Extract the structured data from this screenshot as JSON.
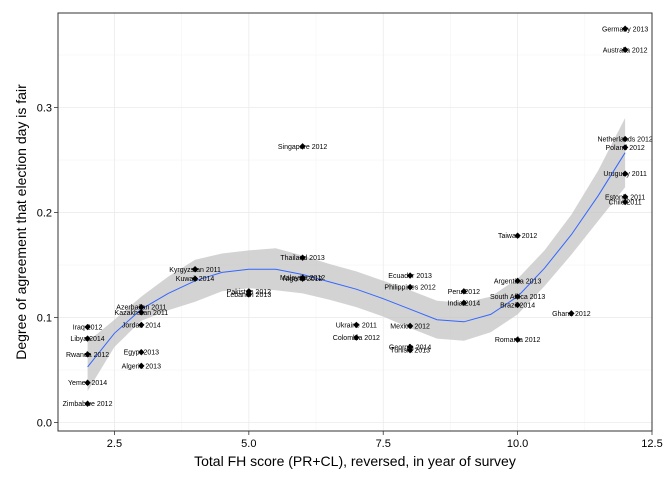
{
  "chart_data": {
    "type": "scatter",
    "xlabel": "Total FH score (PR+CL), reversed, in year of survey",
    "ylabel": "Degree of agreement that election day is fair",
    "xlim": [
      1.45,
      12.5
    ],
    "ylim": [
      -0.008,
      0.39
    ],
    "xticks": [
      2.5,
      5.0,
      7.5,
      10.0,
      12.5
    ],
    "xtick_labels": [
      "2.5",
      "5.0",
      "7.5",
      "10.0",
      "12.5"
    ],
    "yticks": [
      0.0,
      0.1,
      0.2,
      0.3
    ],
    "ytick_labels": [
      "0.0",
      "0.1",
      "0.2",
      "0.3"
    ],
    "grid": true,
    "colors": {
      "points": "#000000",
      "smooth_line": "#3366ff",
      "ribbon": "#c0c0c0",
      "grid": "#ebebeb",
      "panel_border": "#333333"
    },
    "points": [
      {
        "x": 12,
        "y": 0.375,
        "label": "Germany 2013"
      },
      {
        "x": 12,
        "y": 0.355,
        "label": "Australia 2012"
      },
      {
        "x": 12,
        "y": 0.27,
        "label": "Netherlands 2012"
      },
      {
        "x": 12,
        "y": 0.262,
        "label": "Poland 2012"
      },
      {
        "x": 12,
        "y": 0.237,
        "label": "Uruguay 2011"
      },
      {
        "x": 12,
        "y": 0.215,
        "label": "Estonia 2011"
      },
      {
        "x": 12,
        "y": 0.21,
        "label": "Chile 2011"
      },
      {
        "x": 11,
        "y": 0.104,
        "label": "Ghana 2012"
      },
      {
        "x": 10,
        "y": 0.178,
        "label": "Taiwan 2012"
      },
      {
        "x": 10,
        "y": 0.135,
        "label": "Argentina 2013"
      },
      {
        "x": 10,
        "y": 0.12,
        "label": "South Africa 2013"
      },
      {
        "x": 10,
        "y": 0.112,
        "label": "Brazil 2014"
      },
      {
        "x": 10,
        "y": 0.079,
        "label": "Romania 2012"
      },
      {
        "x": 9,
        "y": 0.125,
        "label": "Peru 2012"
      },
      {
        "x": 9,
        "y": 0.114,
        "label": "India 2014"
      },
      {
        "x": 8,
        "y": 0.14,
        "label": "Ecuador 2013"
      },
      {
        "x": 8,
        "y": 0.129,
        "label": "Philippines 2012"
      },
      {
        "x": 8,
        "y": 0.092,
        "label": "Mexico 2012"
      },
      {
        "x": 8,
        "y": 0.072,
        "label": "Georgia 2014"
      },
      {
        "x": 8,
        "y": 0.069,
        "label": "Tunisia 2013"
      },
      {
        "x": 7,
        "y": 0.093,
        "label": "Ukraine 2011"
      },
      {
        "x": 7,
        "y": 0.081,
        "label": "Colombia 2012"
      },
      {
        "x": 6,
        "y": 0.263,
        "label": "Singapore 2012"
      },
      {
        "x": 6,
        "y": 0.157,
        "label": "Thailand 2013"
      },
      {
        "x": 6,
        "y": 0.138,
        "label": "Malaysia 2012"
      },
      {
        "x": 6,
        "y": 0.137,
        "label": "Nigeria 2012"
      },
      {
        "x": 5,
        "y": 0.125,
        "label": "Pakistan 2012"
      },
      {
        "x": 5,
        "y": 0.122,
        "label": "Lebanon 2013"
      },
      {
        "x": 4,
        "y": 0.146,
        "label": "Kyrgyzstan 2011"
      },
      {
        "x": 4,
        "y": 0.137,
        "label": "Kuwait 2014"
      },
      {
        "x": 3,
        "y": 0.11,
        "label": "Azerbaijan 2011"
      },
      {
        "x": 3,
        "y": 0.105,
        "label": "Kazakhstan 2011"
      },
      {
        "x": 3,
        "y": 0.093,
        "label": "Jordan 2014"
      },
      {
        "x": 3,
        "y": 0.067,
        "label": "Egypt 2013"
      },
      {
        "x": 3,
        "y": 0.054,
        "label": "Algeria 2013"
      },
      {
        "x": 2,
        "y": 0.091,
        "label": "Iraq 2012"
      },
      {
        "x": 2,
        "y": 0.08,
        "label": "Libya 2014"
      },
      {
        "x": 2,
        "y": 0.065,
        "label": "Rwanda 2012"
      },
      {
        "x": 2,
        "y": 0.038,
        "label": "Yemen 2014"
      },
      {
        "x": 2,
        "y": 0.018,
        "label": "Zimbabwe 2012"
      }
    ],
    "smooth": {
      "x": [
        2.0,
        2.5,
        3.0,
        3.5,
        4.0,
        4.5,
        5.0,
        5.5,
        6.0,
        6.5,
        7.0,
        7.5,
        8.0,
        8.5,
        9.0,
        9.5,
        10.0,
        10.5,
        11.0,
        11.5,
        12.0
      ],
      "y": [
        0.053,
        0.085,
        0.108,
        0.123,
        0.135,
        0.143,
        0.146,
        0.146,
        0.141,
        0.134,
        0.127,
        0.118,
        0.108,
        0.098,
        0.096,
        0.103,
        0.12,
        0.147,
        0.179,
        0.216,
        0.257
      ],
      "ymin": [
        0.03,
        0.072,
        0.097,
        0.107,
        0.115,
        0.125,
        0.128,
        0.126,
        0.123,
        0.117,
        0.11,
        0.101,
        0.09,
        0.08,
        0.078,
        0.086,
        0.103,
        0.13,
        0.16,
        0.192,
        0.224
      ],
      "ymax": [
        0.077,
        0.098,
        0.12,
        0.139,
        0.155,
        0.161,
        0.164,
        0.166,
        0.159,
        0.151,
        0.144,
        0.135,
        0.126,
        0.116,
        0.114,
        0.12,
        0.137,
        0.164,
        0.198,
        0.24,
        0.29
      ]
    }
  }
}
